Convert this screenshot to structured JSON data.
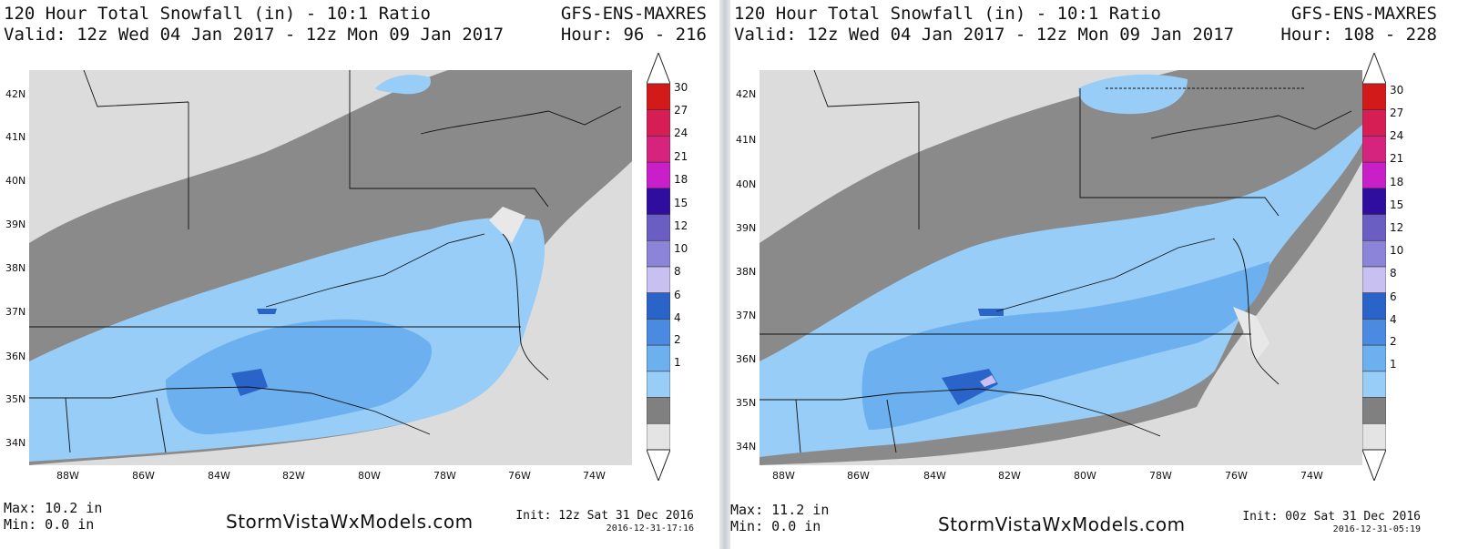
{
  "panels": [
    {
      "title": "120 Hour Total Snowfall (in) - 10:1 Ratio",
      "valid": "Valid: 12z Wed 04 Jan 2017 - 12z Mon 09 Jan 2017",
      "model": "GFS-ENS-MAXRES",
      "hour": "Hour: 96 - 216",
      "max": "Max: 10.2 in",
      "min": "Min: 0.0 in",
      "site": "StormVistaWxModels.com",
      "init": "Init: 12z Sat 31 Dec 2016",
      "stamp": "2016-12-31-17:16"
    },
    {
      "title": "120 Hour Total Snowfall (in) - 10:1 Ratio",
      "valid": "Valid: 12z Wed 04 Jan 2017 - 12z Mon 09 Jan 2017",
      "model": "GFS-ENS-MAXRES",
      "hour": "Hour: 108 - 228",
      "max": "Max: 11.2 in",
      "min": "Min: 0.0 in",
      "site": "StormVistaWxModels.com",
      "init": "Init: 00z Sat 31 Dec 2016",
      "stamp": "2016-12-31-05:19"
    }
  ],
  "lat_labels": [
    "42N",
    "41N",
    "40N",
    "39N",
    "38N",
    "37N",
    "36N",
    "35N",
    "34N"
  ],
  "lon_labels": [
    "88W",
    "86W",
    "84W",
    "82W",
    "80W",
    "78W",
    "76W",
    "74W"
  ],
  "legend_levels": [
    "30",
    "27",
    "24",
    "21",
    "18",
    "15",
    "12",
    "10",
    "8",
    "6",
    "4",
    "2",
    "1"
  ],
  "legend_colors": [
    "#d21a1a",
    "#d61e55",
    "#d6237e",
    "#c81fc8",
    "#2f0d9e",
    "#6b5ec3",
    "#8c84d8",
    "#c8c0f0",
    "#2a64c9",
    "#4a8ae0",
    "#6cb0ef",
    "#97cdf6",
    "#808080",
    "#e4e4e4"
  ]
}
